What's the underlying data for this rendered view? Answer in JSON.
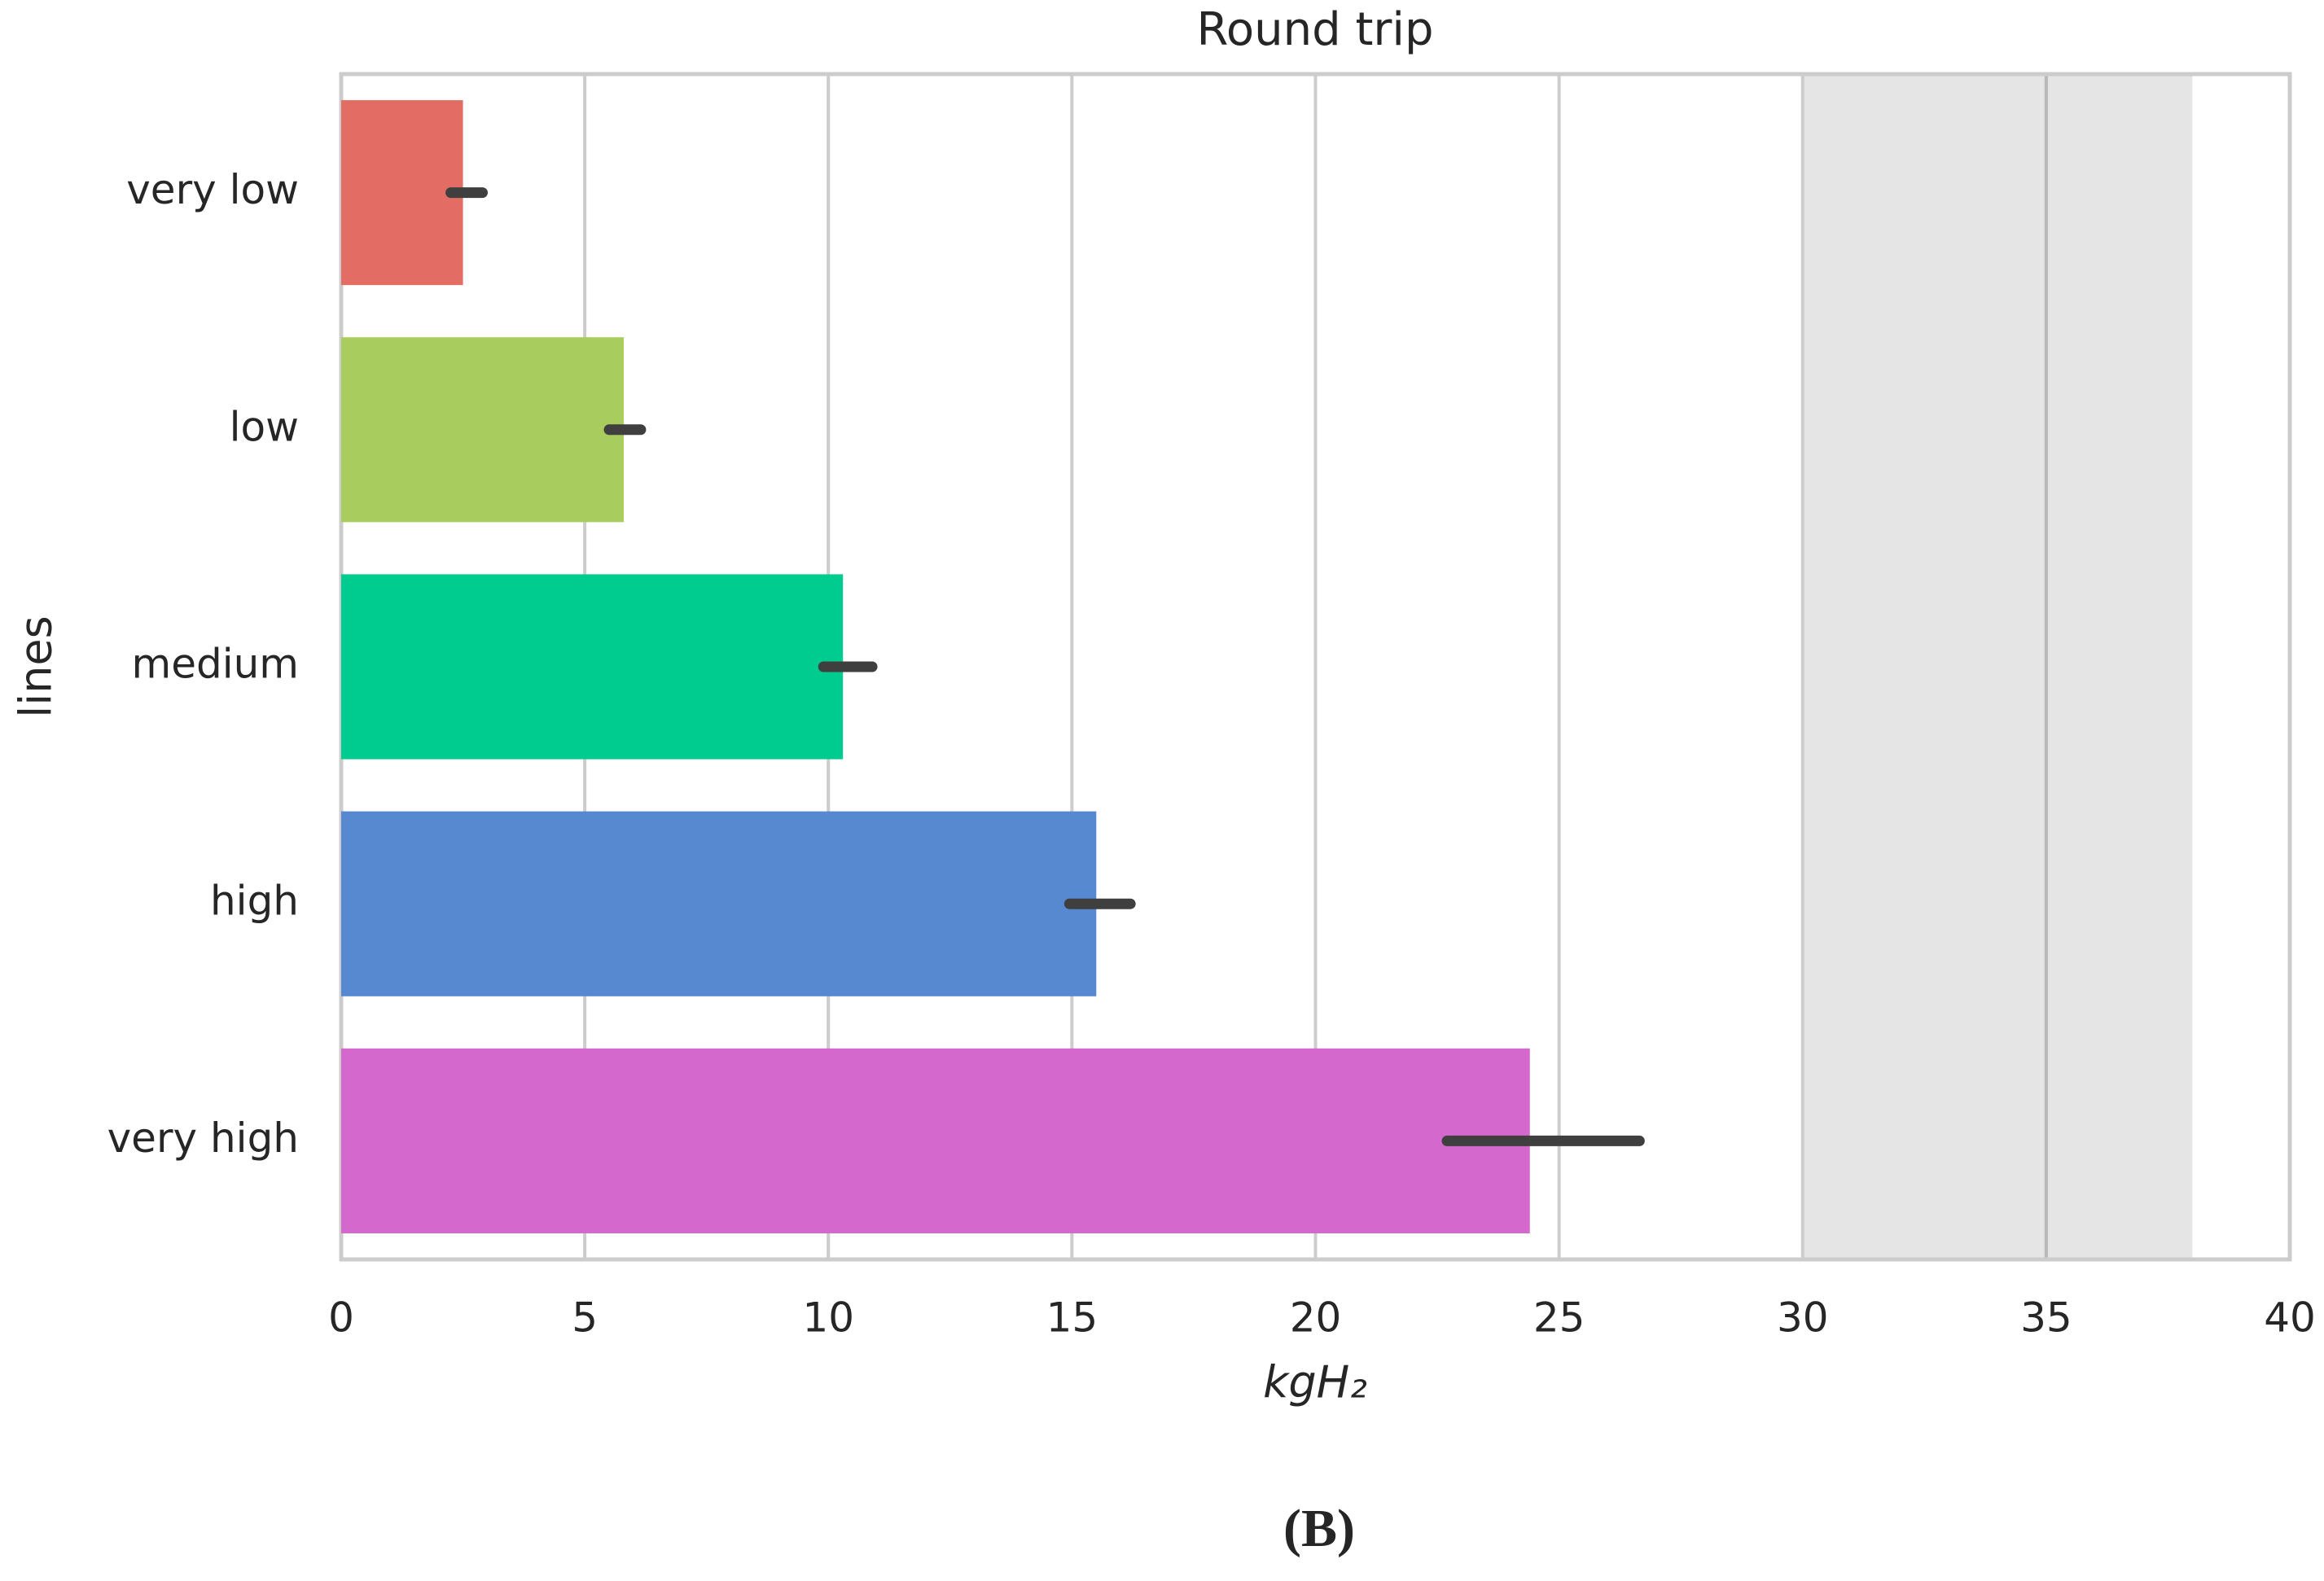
{
  "chart_data": {
    "type": "bar",
    "orientation": "horizontal",
    "title": "Round trip",
    "xlabel": "kgH₂",
    "ylabel": "lines",
    "caption": "(B)",
    "categories": [
      "very low",
      "low",
      "medium",
      "high",
      "very high"
    ],
    "values": [
      2.5,
      5.8,
      10.3,
      15.5,
      24.4
    ],
    "ci": [
      [
        2.25,
        2.9
      ],
      [
        5.5,
        6.15
      ],
      [
        9.9,
        10.9
      ],
      [
        14.95,
        16.2
      ],
      [
        22.7,
        26.65
      ]
    ],
    "colors": [
      "#e36c64",
      "#a8cc5e",
      "#00cc90",
      "#5689cf",
      "#d568cc"
    ],
    "shaded_region": [
      30,
      38
    ],
    "xlim": [
      0,
      40
    ],
    "xticks": [
      0,
      5,
      10,
      15,
      20,
      25,
      30,
      35,
      40
    ],
    "grid": true
  }
}
